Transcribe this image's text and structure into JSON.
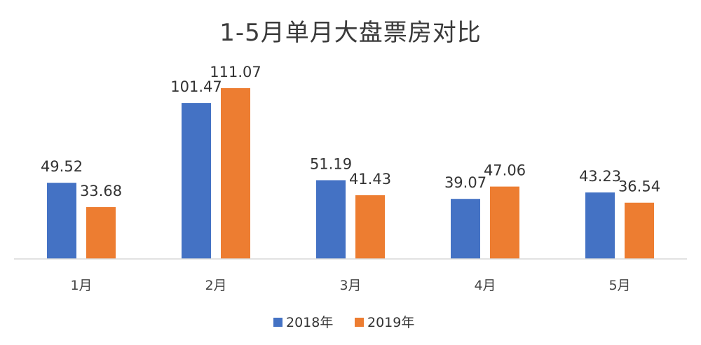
{
  "chart_data": {
    "type": "bar",
    "title": "1-5月单月大盘票房对比",
    "categories": [
      "1月",
      "2月",
      "3月",
      "4月",
      "5月"
    ],
    "series": [
      {
        "name": "2018年",
        "values": [
          49.52,
          101.47,
          51.19,
          39.07,
          43.23
        ],
        "color": "#4472c4"
      },
      {
        "name": "2019年",
        "values": [
          33.68,
          111.07,
          41.43,
          47.06,
          36.54
        ],
        "color": "#ed7d31"
      }
    ],
    "xlabel": "",
    "ylabel": "",
    "ylim": [
      0,
      111.07
    ],
    "grid": false,
    "legend_position": "bottom",
    "axis_color": "#d9d9d9"
  }
}
